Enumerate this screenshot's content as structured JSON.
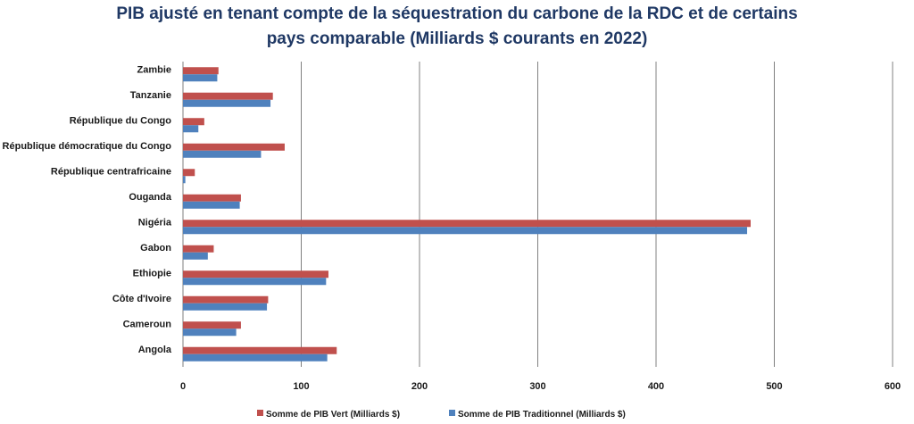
{
  "chart_data": {
    "type": "bar",
    "orientation": "horizontal",
    "title_line1": "PIB ajusté en tenant compte de la séquestration du carbone de la RDC et de certains",
    "title_line2": "pays comparable (Milliards $ courants en 2022)",
    "categories": [
      "Zambie",
      "Tanzanie",
      "République du Congo",
      "République démocratique du Congo",
      "République centrafricaine",
      "Ouganda",
      "Nigéria",
      "Gabon",
      "Ethiopie",
      "Côte d'Ivoire",
      "Cameroun",
      "Angola"
    ],
    "series": [
      {
        "name": "Somme de PIB Vert (Milliards  $)",
        "color": "#c0504d",
        "values": [
          30,
          76,
          18,
          86,
          10,
          49,
          480,
          26,
          123,
          72,
          49,
          130
        ]
      },
      {
        "name": "Somme de PIB Traditionnel  (Milliards  $)",
        "color": "#4f81bd",
        "values": [
          29,
          74,
          13,
          66,
          2,
          48,
          477,
          21,
          121,
          71,
          45,
          122
        ]
      }
    ],
    "xlim": [
      0,
      600
    ],
    "x_ticks": [
      "0",
      "100",
      "200",
      "300",
      "400",
      "500",
      "600"
    ],
    "grid": "vertical",
    "legend_position": "bottom"
  }
}
